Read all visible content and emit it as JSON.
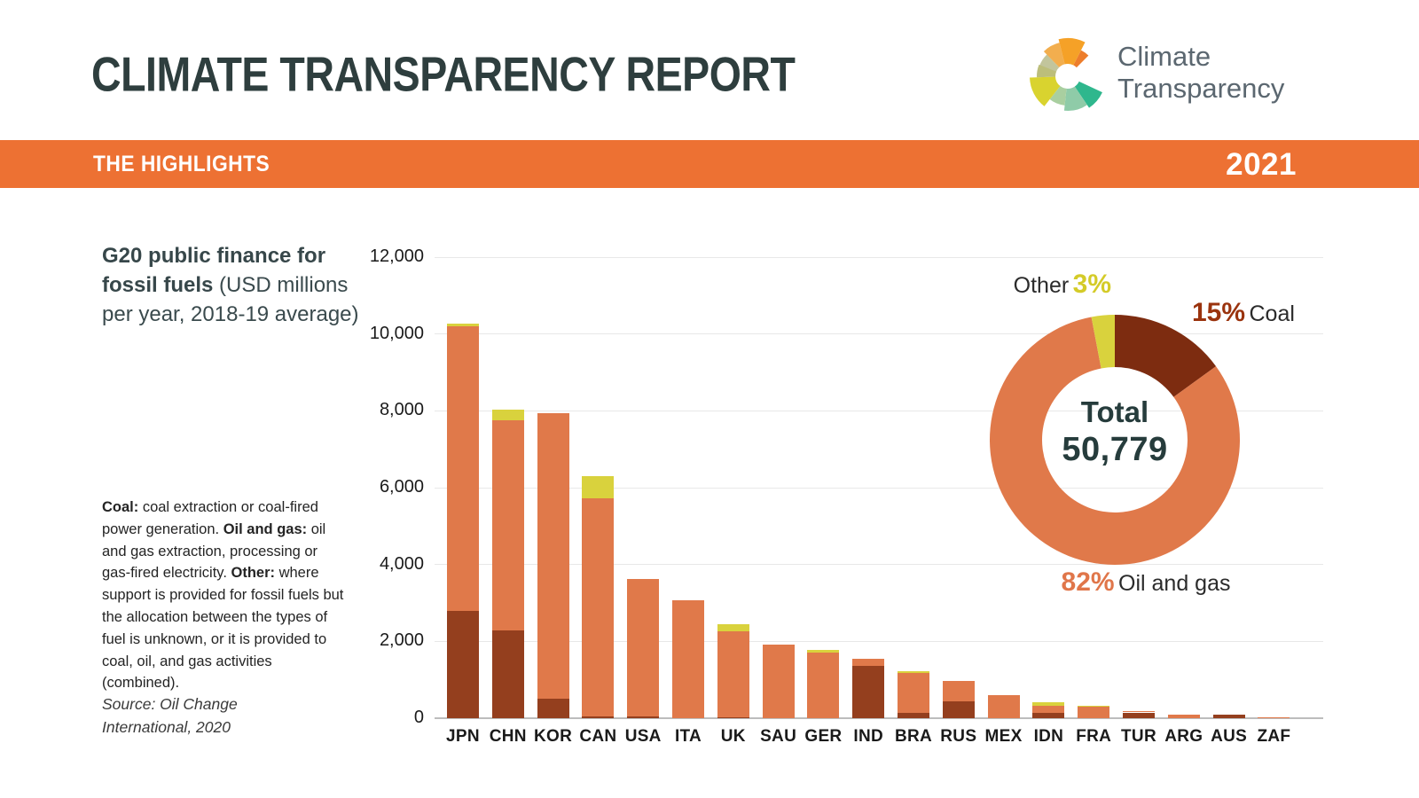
{
  "header": {
    "title": "CLIMATE TRANSPARENCY REPORT",
    "logo_line1": "Climate",
    "logo_line2": "Transparency"
  },
  "band": {
    "label": "THE HIGHLIGHTS",
    "year": "2021",
    "color": "#ED7133"
  },
  "panel": {
    "title_bold": "G20 public finance for fossil fuels",
    "title_rest": " (USD millions per year, 2018-19 average)",
    "description": [
      {
        "text": "Coal:",
        "bold": true
      },
      {
        "text": " coal extraction or coal-fired power generation. ",
        "bold": false
      },
      {
        "text": "Oil and gas:",
        "bold": true
      },
      {
        "text": " oil and gas extraction, processing or gas-fired electricity. ",
        "bold": false
      },
      {
        "text": "Other:",
        "bold": true
      },
      {
        "text": " where support is provided for fossil fuels but the allocation between the types of fuel is unknown, or it is provided to coal, oil, and gas activities (combined).",
        "bold": false
      }
    ],
    "source": "Source: Oil Change International, 2020"
  },
  "chart_data": [
    {
      "type": "bar",
      "stacked": true,
      "title": "G20 public finance for fossil fuels (USD millions per year, 2018-19 average)",
      "categories": [
        "JPN",
        "CHN",
        "KOR",
        "CAN",
        "USA",
        "ITA",
        "UK",
        "SAU",
        "GER",
        "IND",
        "BRA",
        "RUS",
        "MEX",
        "IDN",
        "FRA",
        "TUR",
        "ARG",
        "AUS",
        "ZAF"
      ],
      "series": [
        {
          "name": "Coal",
          "color": "#943F1E",
          "values": [
            2800,
            2280,
            500,
            50,
            50,
            0,
            30,
            0,
            0,
            1370,
            135,
            430,
            0,
            130,
            0,
            150,
            0,
            95,
            0
          ]
        },
        {
          "name": "Oil and gas",
          "color": "#E0794A",
          "values": [
            7400,
            5470,
            7430,
            5670,
            3570,
            3080,
            2230,
            1915,
            1710,
            180,
            1050,
            550,
            590,
            190,
            295,
            25,
            90,
            0,
            20
          ]
        },
        {
          "name": "Other",
          "color": "#D9D23D",
          "values": [
            80,
            280,
            0,
            590,
            0,
            0,
            190,
            0,
            70,
            0,
            45,
            0,
            0,
            90,
            25,
            0,
            0,
            0,
            0
          ]
        }
      ],
      "ylim": [
        0,
        12000
      ],
      "yticks": [
        0,
        2000,
        4000,
        6000,
        8000,
        10000,
        12000
      ],
      "ytick_labels": [
        "0",
        "2,000",
        "4,000",
        "6,000",
        "8,000",
        "10,000",
        "12,000"
      ],
      "grid": true,
      "xlabel": "",
      "ylabel": ""
    },
    {
      "type": "pie",
      "donut": true,
      "total_label": "Total",
      "total_value": "50,779",
      "slices": [
        {
          "name": "Coal",
          "pct": 15,
          "pct_label": "15%",
          "color": "#7D2C10",
          "pct_color": "#9A330E"
        },
        {
          "name": "Oil and gas",
          "pct": 82,
          "pct_label": "82%",
          "color": "#E0794A",
          "pct_color": "#E0764A"
        },
        {
          "name": "Other",
          "pct": 3,
          "pct_label": "3%",
          "color": "#D9D23D",
          "pct_color": "#D4CB28"
        }
      ],
      "legend_position": "around"
    }
  ]
}
